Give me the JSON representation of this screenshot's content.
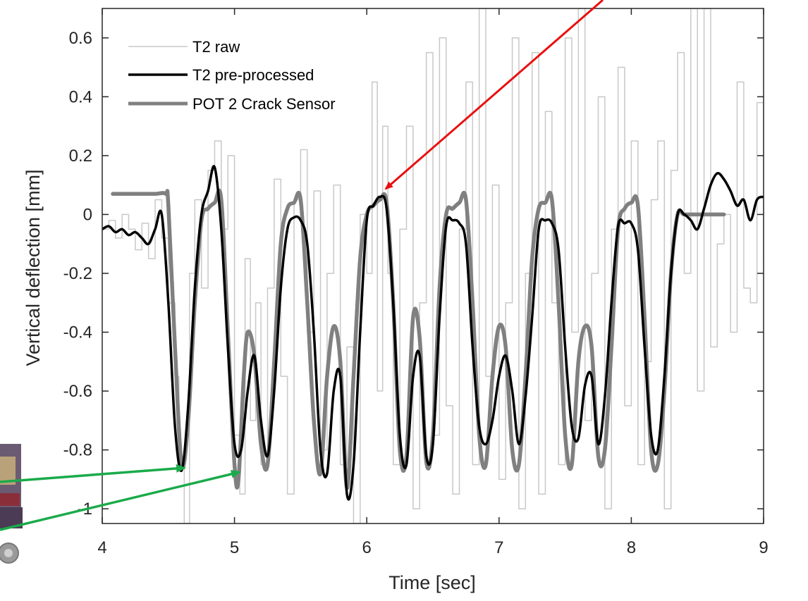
{
  "chart_data": {
    "type": "line",
    "xlabel": "Time [sec]",
    "ylabel": "Vertical deflection [mm]",
    "xlim": [
      4,
      9
    ],
    "ylim": [
      -1.05,
      0.7
    ],
    "xticks": [
      {
        "value": 4,
        "label": "4"
      },
      {
        "value": 5,
        "label": "5"
      },
      {
        "value": 6,
        "label": "6"
      },
      {
        "value": 7,
        "label": "7"
      },
      {
        "value": 8,
        "label": "8"
      },
      {
        "value": 9,
        "label": "9"
      }
    ],
    "yticks": [
      {
        "value": 0.6,
        "label": "0.6"
      },
      {
        "value": 0.4,
        "label": "0.4"
      },
      {
        "value": 0.2,
        "label": "0.2"
      },
      {
        "value": 0,
        "label": "0"
      },
      {
        "value": -0.2,
        "label": "-0.2"
      },
      {
        "value": -0.4,
        "label": "-0.4"
      },
      {
        "value": -0.6,
        "label": "-0.6"
      },
      {
        "value": -0.8,
        "label": "-0.8"
      },
      {
        "value": -1,
        "label": "-1"
      }
    ],
    "grid": false,
    "legend_position": "top-left",
    "series": [
      {
        "name": "T2 raw",
        "color": "#c8c8c8",
        "x": [
          4.0,
          4.05,
          4.1,
          4.15,
          4.2,
          4.25,
          4.3,
          4.35,
          4.4,
          4.45,
          4.5,
          4.55,
          4.58,
          4.62,
          4.66,
          4.7,
          4.75,
          4.8,
          4.85,
          4.9,
          4.95,
          5.0,
          5.04,
          5.08,
          5.12,
          5.16,
          5.2,
          5.25,
          5.3,
          5.35,
          5.4,
          5.45,
          5.5,
          5.55,
          5.6,
          5.65,
          5.7,
          5.75,
          5.8,
          5.85,
          5.9,
          5.95,
          6.0,
          6.04,
          6.08,
          6.12,
          6.16,
          6.2,
          6.25,
          6.3,
          6.35,
          6.4,
          6.45,
          6.5,
          6.55,
          6.6,
          6.65,
          6.7,
          6.75,
          6.8,
          6.85,
          6.9,
          6.95,
          7.0,
          7.05,
          7.1,
          7.15,
          7.2,
          7.25,
          7.3,
          7.35,
          7.4,
          7.45,
          7.5,
          7.55,
          7.6,
          7.65,
          7.7,
          7.75,
          7.8,
          7.85,
          7.9,
          7.95,
          8.0,
          8.05,
          8.1,
          8.15,
          8.2,
          8.25,
          8.3,
          8.35,
          8.4,
          8.45,
          8.5,
          8.55,
          8.6,
          8.65,
          8.7,
          8.75,
          8.8,
          8.85,
          8.9,
          8.95,
          9.0
        ],
        "values": [
          -0.05,
          -0.02,
          -0.08,
          0.0,
          -0.05,
          -0.12,
          -0.03,
          -0.15,
          0.05,
          -0.08,
          -0.3,
          -0.55,
          -0.85,
          -1.05,
          -0.2,
          0.05,
          -0.25,
          0.15,
          0.25,
          -0.05,
          0.2,
          -0.75,
          -0.95,
          -0.15,
          -0.7,
          -0.3,
          -0.85,
          -0.25,
          0.12,
          -0.55,
          -0.95,
          0.05,
          0.22,
          -0.4,
          0.08,
          -0.8,
          -0.2,
          0.1,
          -0.85,
          -0.45,
          -1.05,
          0.0,
          -0.2,
          0.45,
          -0.6,
          0.3,
          -0.2,
          -0.85,
          -0.05,
          0.3,
          -1.0,
          -0.3,
          0.55,
          -0.75,
          0.6,
          -0.65,
          -0.95,
          -0.05,
          0.45,
          -0.85,
          0.7,
          -0.55,
          0.1,
          -0.9,
          -0.3,
          0.6,
          -1.0,
          -0.2,
          0.55,
          -0.95,
          0.35,
          -0.3,
          -0.85,
          0.6,
          -0.4,
          0.7,
          -0.7,
          -0.2,
          0.4,
          -1.0,
          -0.05,
          0.5,
          -0.65,
          0.25,
          -0.85,
          -0.5,
          0.05,
          0.25,
          -1.0,
          0.15,
          0.55,
          -0.2,
          0.7,
          -0.6,
          0.7,
          -0.45,
          -0.1,
          0.0,
          -0.4,
          0.45,
          -0.25,
          -0.3,
          0.38,
          -0.15
        ]
      },
      {
        "name": "T2 pre-processed",
        "color": "#000000",
        "x": [
          4.0,
          4.05,
          4.1,
          4.15,
          4.2,
          4.25,
          4.3,
          4.35,
          4.4,
          4.45,
          4.5,
          4.55,
          4.6,
          4.65,
          4.7,
          4.75,
          4.8,
          4.85,
          4.9,
          4.95,
          5.0,
          5.05,
          5.1,
          5.15,
          5.2,
          5.25,
          5.3,
          5.35,
          5.4,
          5.45,
          5.5,
          5.55,
          5.6,
          5.65,
          5.7,
          5.75,
          5.8,
          5.85,
          5.9,
          5.95,
          6.0,
          6.05,
          6.1,
          6.15,
          6.2,
          6.25,
          6.3,
          6.35,
          6.4,
          6.45,
          6.5,
          6.55,
          6.6,
          6.65,
          6.7,
          6.75,
          6.8,
          6.85,
          6.9,
          6.95,
          7.0,
          7.05,
          7.1,
          7.15,
          7.2,
          7.25,
          7.3,
          7.35,
          7.4,
          7.45,
          7.5,
          7.55,
          7.6,
          7.65,
          7.7,
          7.75,
          7.8,
          7.85,
          7.9,
          7.95,
          8.0,
          8.05,
          8.1,
          8.15,
          8.2,
          8.25,
          8.3,
          8.35,
          8.4,
          8.45,
          8.5,
          8.55,
          8.6,
          8.65,
          8.7,
          8.75,
          8.8,
          8.85,
          8.9,
          8.95,
          9.0
        ],
        "values": [
          -0.05,
          -0.04,
          -0.06,
          -0.05,
          -0.07,
          -0.06,
          -0.08,
          -0.1,
          -0.05,
          0.0,
          -0.3,
          -0.72,
          -0.87,
          -0.65,
          -0.25,
          0.0,
          0.08,
          0.16,
          -0.05,
          -0.45,
          -0.78,
          -0.8,
          -0.6,
          -0.48,
          -0.7,
          -0.82,
          -0.6,
          -0.25,
          -0.05,
          -0.01,
          -0.02,
          -0.1,
          -0.4,
          -0.8,
          -0.88,
          -0.6,
          -0.55,
          -0.95,
          -0.85,
          -0.4,
          -0.02,
          0.03,
          0.06,
          0.02,
          -0.3,
          -0.75,
          -0.85,
          -0.55,
          -0.48,
          -0.82,
          -0.78,
          -0.35,
          -0.04,
          -0.02,
          -0.03,
          -0.1,
          -0.45,
          -0.72,
          -0.78,
          -0.7,
          -0.55,
          -0.48,
          -0.6,
          -0.78,
          -0.62,
          -0.35,
          -0.05,
          -0.02,
          -0.03,
          -0.12,
          -0.45,
          -0.72,
          -0.76,
          -0.58,
          -0.55,
          -0.78,
          -0.62,
          -0.3,
          -0.04,
          -0.03,
          -0.03,
          -0.12,
          -0.45,
          -0.75,
          -0.8,
          -0.55,
          -0.2,
          0.0,
          0.0,
          -0.02,
          -0.05,
          0.02,
          0.1,
          0.14,
          0.12,
          0.08,
          0.03,
          0.05,
          -0.02,
          0.05,
          0.06
        ]
      },
      {
        "name": "POT 2 Crack Sensor",
        "color": "#808080",
        "x": [
          4.08,
          4.2,
          4.3,
          4.4,
          4.48,
          4.5,
          4.55,
          4.6,
          4.65,
          4.7,
          4.75,
          4.8,
          4.85,
          4.9,
          4.95,
          5.0,
          5.03,
          5.07,
          5.1,
          5.15,
          5.2,
          5.25,
          5.3,
          5.35,
          5.4,
          5.45,
          5.5,
          5.55,
          5.6,
          5.65,
          5.7,
          5.75,
          5.8,
          5.85,
          5.9,
          5.95,
          6.0,
          6.05,
          6.1,
          6.15,
          6.2,
          6.25,
          6.3,
          6.35,
          6.4,
          6.45,
          6.5,
          6.55,
          6.6,
          6.65,
          6.7,
          6.75,
          6.8,
          6.85,
          6.9,
          6.95,
          7.0,
          7.05,
          7.1,
          7.15,
          7.2,
          7.25,
          7.3,
          7.35,
          7.4,
          7.45,
          7.5,
          7.55,
          7.6,
          7.65,
          7.7,
          7.75,
          7.8,
          7.85,
          7.9,
          7.95,
          8.0,
          8.05,
          8.1,
          8.15,
          8.2,
          8.25,
          8.3,
          8.35,
          8.4,
          8.5,
          8.6,
          8.7
        ],
        "values": [
          0.07,
          0.07,
          0.07,
          0.07,
          0.07,
          0.03,
          -0.45,
          -0.85,
          -0.7,
          -0.3,
          -0.02,
          0.02,
          0.04,
          0.05,
          -0.4,
          -0.85,
          -0.9,
          -0.55,
          -0.4,
          -0.48,
          -0.78,
          -0.85,
          -0.5,
          -0.1,
          0.02,
          0.04,
          0.05,
          -0.3,
          -0.7,
          -0.88,
          -0.55,
          -0.38,
          -0.5,
          -0.93,
          -0.55,
          -0.15,
          0.0,
          0.03,
          0.05,
          0.04,
          -0.3,
          -0.8,
          -0.82,
          -0.35,
          -0.42,
          -0.84,
          -0.75,
          -0.25,
          0.0,
          0.02,
          0.04,
          0.05,
          -0.3,
          -0.75,
          -0.85,
          -0.55,
          -0.38,
          -0.45,
          -0.8,
          -0.85,
          -0.55,
          -0.15,
          0.02,
          0.04,
          0.05,
          -0.3,
          -0.75,
          -0.85,
          -0.5,
          -0.38,
          -0.45,
          -0.82,
          -0.8,
          -0.45,
          -0.05,
          0.02,
          0.04,
          0.03,
          -0.35,
          -0.8,
          -0.85,
          -0.6,
          -0.2,
          0.0,
          0.0,
          0.0,
          0.0,
          0.0
        ]
      }
    ]
  },
  "annotations": {
    "red_arrow_color": "#e81010",
    "green_arrow_color": "#1aaa4a"
  }
}
